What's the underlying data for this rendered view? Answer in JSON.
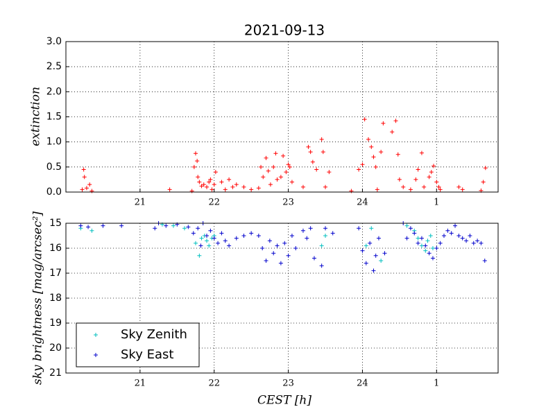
{
  "chart_data": [
    {
      "type": "scatter",
      "title": "2021-09-13",
      "ylabel": "extinction",
      "xlim": [
        20.0,
        25.83
      ],
      "xticks": [
        21,
        22,
        23,
        24,
        {
          "value": 25,
          "label": "1"
        }
      ],
      "ylim": [
        0,
        3
      ],
      "yticks": [
        {
          "value": 0,
          "label": "0.0"
        },
        {
          "value": 0.5,
          "label": "0.5"
        },
        {
          "value": 1,
          "label": "1.0"
        },
        {
          "value": 1.5,
          "label": "1.5"
        },
        {
          "value": 2,
          "label": "2.0"
        },
        {
          "value": 2.5,
          "label": "2.5"
        },
        {
          "value": 3,
          "label": "3.0"
        }
      ],
      "grid": true,
      "series": [
        {
          "color": "#ff0000",
          "x": [
            20.22,
            20.24,
            20.25,
            20.28,
            20.32,
            20.35,
            21.4,
            21.7,
            21.73,
            21.75,
            21.77,
            21.78,
            21.8,
            21.83,
            21.86,
            21.9,
            21.93,
            21.95,
            21.97,
            22.0,
            22.02,
            22.1,
            22.15,
            22.2,
            22.25,
            22.3,
            22.4,
            22.5,
            22.6,
            22.63,
            22.66,
            22.7,
            22.73,
            22.76,
            22.8,
            22.83,
            22.85,
            22.9,
            22.93,
            22.97,
            23.0,
            23.02,
            23.05,
            23.2,
            23.27,
            23.3,
            23.33,
            23.38,
            23.45,
            23.47,
            23.5,
            23.55,
            23.85,
            23.95,
            24.0,
            24.03,
            24.08,
            24.12,
            24.15,
            24.18,
            24.2,
            24.25,
            24.28,
            24.4,
            24.45,
            24.48,
            24.5,
            24.55,
            24.65,
            24.72,
            24.75,
            24.8,
            24.83,
            24.9,
            24.93,
            24.96,
            25.0,
            25.03,
            25.05,
            25.3,
            25.35,
            25.6,
            25.63,
            25.66
          ],
          "values": [
            0.05,
            0.45,
            0.3,
            0.08,
            0.15,
            0.02,
            0.05,
            0.02,
            0.5,
            0.77,
            0.62,
            0.3,
            0.2,
            0.12,
            0.15,
            0.1,
            0.2,
            0.25,
            0.05,
            0.15,
            0.4,
            0.2,
            0.05,
            0.25,
            0.1,
            0.15,
            0.1,
            0.05,
            0.08,
            0.5,
            0.3,
            0.68,
            0.42,
            0.15,
            0.5,
            0.77,
            0.25,
            0.3,
            0.72,
            0.4,
            0.55,
            0.5,
            0.2,
            0.1,
            0.9,
            0.8,
            0.6,
            0.45,
            1.05,
            0.8,
            0.1,
            0.4,
            0.02,
            0.45,
            0.55,
            1.45,
            1.05,
            0.9,
            0.7,
            0.5,
            0.05,
            0.8,
            1.37,
            1.2,
            1.42,
            0.75,
            0.25,
            0.1,
            0.05,
            0.25,
            0.45,
            0.78,
            0.1,
            0.3,
            0.4,
            0.52,
            0.2,
            0.1,
            0.05,
            0.1,
            0.05,
            0.03,
            0.2,
            0.48
          ]
        }
      ]
    },
    {
      "type": "scatter",
      "ylabel": "sky brightness [mag/arcsec²]",
      "xlabel": "CEST [h]",
      "xlim": [
        20.0,
        25.83
      ],
      "xticks": [
        21,
        22,
        23,
        24,
        {
          "value": 25,
          "label": "1"
        }
      ],
      "ylim": [
        21,
        15
      ],
      "yticks": [
        15,
        16,
        17,
        18,
        19,
        20,
        21
      ],
      "grid": true,
      "legend": "lower left",
      "series": [
        {
          "name": "Sky Zenith",
          "color": "#00bfbf",
          "x": [
            20.2,
            20.35,
            21.3,
            21.45,
            21.6,
            21.75,
            21.8,
            21.83,
            21.87,
            21.9,
            21.93,
            21.97,
            22.0,
            23.45,
            23.5,
            24.05,
            24.12,
            24.25,
            24.6,
            24.7,
            24.75,
            24.8,
            24.85,
            24.88,
            24.92,
            24.95
          ],
          "values": [
            15.2,
            15.3,
            15.05,
            15.1,
            15.2,
            15.8,
            16.3,
            15.6,
            15.5,
            15.7,
            15.9,
            15.6,
            15.5,
            15.9,
            15.5,
            15.9,
            15.2,
            16.5,
            15.1,
            15.3,
            15.6,
            15.9,
            16.1,
            15.7,
            15.5,
            16.0
          ]
        },
        {
          "name": "Sky East",
          "color": "#0000cc",
          "x": [
            20.2,
            20.3,
            20.5,
            20.75,
            21.2,
            21.25,
            21.35,
            21.5,
            21.65,
            21.72,
            21.78,
            21.82,
            21.85,
            21.9,
            21.95,
            22.0,
            22.05,
            22.1,
            22.15,
            22.2,
            22.3,
            22.4,
            22.5,
            22.6,
            22.65,
            22.7,
            22.75,
            22.8,
            22.85,
            22.9,
            22.95,
            23.0,
            23.05,
            23.1,
            23.2,
            23.25,
            23.3,
            23.35,
            23.45,
            23.5,
            23.6,
            23.95,
            24.0,
            24.05,
            24.1,
            24.15,
            24.18,
            24.22,
            24.3,
            24.55,
            24.6,
            24.65,
            24.7,
            24.75,
            24.8,
            24.85,
            24.9,
            24.95,
            25.0,
            25.05,
            25.1,
            25.15,
            25.2,
            25.25,
            25.3,
            25.35,
            25.4,
            25.45,
            25.5,
            25.55,
            25.6,
            25.65
          ],
          "values": [
            15.1,
            15.15,
            15.1,
            15.1,
            15.2,
            15.0,
            15.1,
            15.05,
            15.15,
            15.4,
            15.2,
            15.9,
            15.0,
            15.5,
            15.3,
            15.6,
            15.8,
            15.4,
            15.7,
            15.9,
            15.6,
            15.5,
            15.4,
            15.5,
            16.0,
            16.5,
            15.7,
            16.2,
            15.9,
            16.6,
            15.8,
            16.3,
            15.5,
            16.0,
            15.3,
            15.6,
            15.2,
            16.4,
            16.7,
            15.2,
            15.4,
            15.2,
            16.1,
            16.6,
            15.8,
            16.9,
            16.3,
            15.6,
            16.2,
            15.0,
            15.6,
            15.2,
            15.4,
            15.8,
            15.6,
            15.9,
            16.2,
            16.4,
            16.0,
            15.8,
            15.5,
            15.3,
            15.4,
            15.1,
            15.5,
            15.6,
            15.7,
            15.5,
            15.8,
            15.7,
            15.8,
            16.5
          ]
        }
      ]
    }
  ]
}
